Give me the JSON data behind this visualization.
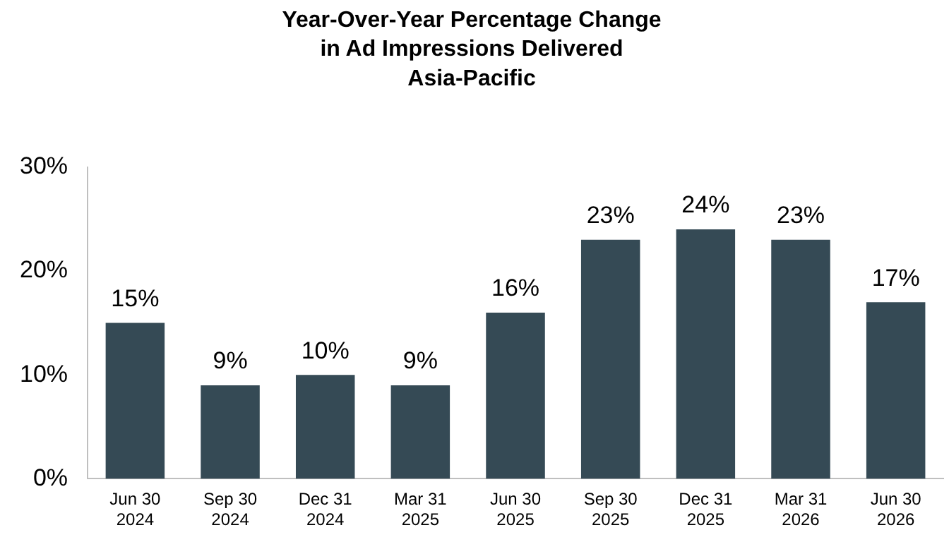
{
  "chart_data": {
    "type": "bar",
    "title": "Year-Over-Year Percentage Change\nin Ad Impressions Delivered\nAsia-Pacific",
    "categories": [
      "Jun 30\n2024",
      "Sep 30\n2024",
      "Dec 31\n2024",
      "Mar 31\n2025",
      "Jun 30\n2025",
      "Sep 30\n2025",
      "Dec 31\n2025",
      "Mar 31\n2026",
      "Jun 30\n2026"
    ],
    "values": [
      15,
      9,
      10,
      9,
      16,
      23,
      24,
      23,
      17
    ],
    "value_labels": [
      "15%",
      "9%",
      "10%",
      "9%",
      "16%",
      "23%",
      "24%",
      "23%",
      "17%"
    ],
    "color": "#354a55",
    "ylim": [
      0,
      30
    ],
    "yticks": [
      {
        "value": 0,
        "label": "0%"
      },
      {
        "value": 10,
        "label": "10%"
      },
      {
        "value": 20,
        "label": "20%"
      },
      {
        "value": 30,
        "label": "30%"
      }
    ],
    "grid": false,
    "legend": false
  }
}
